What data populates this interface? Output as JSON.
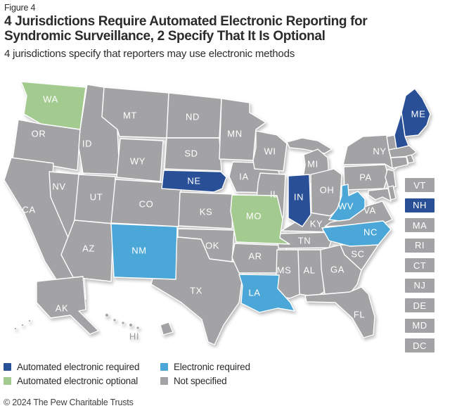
{
  "figure_label": "Figure 4",
  "title": "4 Jurisdictions Require Automated Electronic Reporting for Syndromic Surveillance, 2 Specify That It Is Optional",
  "subtitle": "4 jurisdictions specify that reporters may use electronic methods",
  "footer": "© 2024 The Pew Charitable Trusts",
  "status_colors": {
    "automated_required": "#294f97",
    "automated_optional": "#a4cb8f",
    "electronic_required": "#4aa7d7",
    "not_specified": "#a3a2a4"
  },
  "map_label_color": "#ffffff",
  "offmap_label_color": "#9a999b",
  "legend": [
    {
      "label": "Automated electronic required",
      "status": "automated_required"
    },
    {
      "label": "Automated electronic optional",
      "status": "automated_optional"
    },
    {
      "label": "Electronic required",
      "status": "electronic_required"
    },
    {
      "label": "Not specified",
      "status": "not_specified"
    }
  ],
  "small_state_column": [
    "VT",
    "NH",
    "MA",
    "RI",
    "CT",
    "NJ",
    "DE",
    "MD",
    "DC"
  ],
  "state_status": {
    "OR": "not_specified",
    "CA": "not_specified",
    "NV": "not_specified",
    "ID": "not_specified",
    "MT": "not_specified",
    "WY": "not_specified",
    "UT": "not_specified",
    "CO": "not_specified",
    "AZ": "not_specified",
    "ND": "not_specified",
    "SD": "not_specified",
    "KS": "not_specified",
    "OK": "not_specified",
    "TX": "not_specified",
    "MN": "not_specified",
    "IA": "not_specified",
    "AR": "not_specified",
    "WI": "not_specified",
    "IL": "not_specified",
    "MI": "not_specified",
    "OH": "not_specified",
    "KY": "not_specified",
    "TN": "not_specified",
    "MS": "not_specified",
    "AL": "not_specified",
    "GA": "not_specified",
    "SC": "not_specified",
    "VA": "not_specified",
    "FL": "not_specified",
    "PA": "not_specified",
    "NY": "not_specified",
    "VT": "not_specified",
    "MA": "not_specified",
    "RI": "not_specified",
    "CT": "not_specified",
    "NJ": "not_specified",
    "DE": "not_specified",
    "MD": "not_specified",
    "DC": "not_specified",
    "AK": "not_specified",
    "HI": "not_specified",
    "WA": "automated_optional",
    "MO": "automated_optional",
    "NM": "electronic_required",
    "LA": "electronic_required",
    "WV": "electronic_required",
    "NC": "electronic_required",
    "NE": "automated_required",
    "IN": "automated_required",
    "ME": "automated_required",
    "NH": "automated_required"
  },
  "chart_data": {
    "type": "heatmap",
    "subtype": "us-state-choropleth",
    "title": "4 Jurisdictions Require Automated Electronic Reporting for Syndromic Surveillance, 2 Specify That It Is Optional",
    "subtitle": "4 jurisdictions specify that reporters may use electronic methods",
    "legend_position": "bottom",
    "categories": [
      "Automated electronic required",
      "Automated electronic optional",
      "Electronic required",
      "Not specified"
    ],
    "category_colors": [
      "#294f97",
      "#a4cb8f",
      "#4aa7d7",
      "#a3a2a4"
    ],
    "assignments": {
      "Automated electronic required": [
        "NE",
        "IN",
        "ME",
        "NH"
      ],
      "Automated electronic optional": [
        "WA",
        "MO"
      ],
      "Electronic required": [
        "NM",
        "LA",
        "WV",
        "NC"
      ],
      "Not specified": [
        "OR",
        "CA",
        "NV",
        "ID",
        "MT",
        "WY",
        "UT",
        "CO",
        "AZ",
        "ND",
        "SD",
        "KS",
        "OK",
        "TX",
        "MN",
        "IA",
        "AR",
        "WI",
        "IL",
        "MI",
        "OH",
        "KY",
        "TN",
        "MS",
        "AL",
        "GA",
        "SC",
        "VA",
        "FL",
        "PA",
        "NY",
        "VT",
        "MA",
        "RI",
        "CT",
        "NJ",
        "DE",
        "MD",
        "DC",
        "AK",
        "HI"
      ]
    },
    "counts": {
      "Automated electronic required": 4,
      "Automated electronic optional": 2,
      "Electronic required": 4,
      "Not specified": 41
    }
  }
}
